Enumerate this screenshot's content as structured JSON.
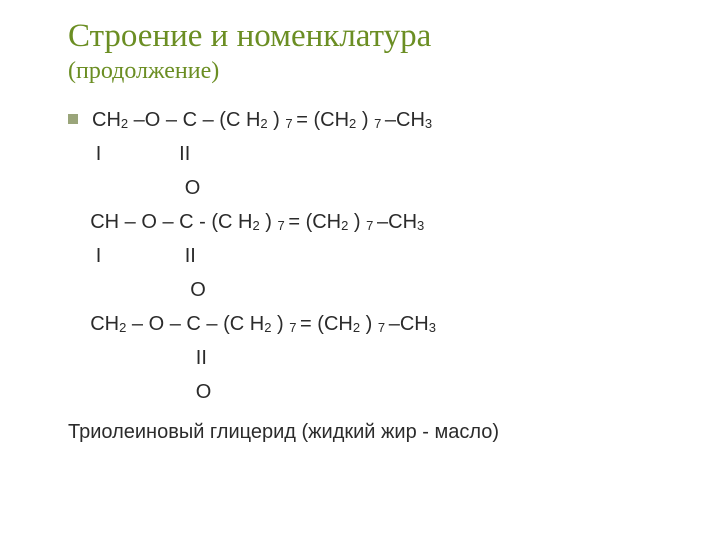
{
  "colors": {
    "title": "#6b8e23",
    "bullet": "#9aa57a",
    "body_text": "#2b2b2b",
    "background": "#ffffff"
  },
  "typography": {
    "title_family": "Times New Roman",
    "body_family": "Arial",
    "title_size_pt": 33,
    "subtitle_size_pt": 24,
    "body_size_pt": 20,
    "subscript_size_pt": 13
  },
  "title": "Строение и номенклатура",
  "subtitle": "(продолжение)",
  "block1": {
    "pre": "СН",
    "s1": "2",
    "mid1a": " –О ",
    "dash1": "–",
    "mid1b": " С – (С Н",
    "s2": "2",
    "mid2": " ) ",
    "s3": "7 ",
    "mid3": "= (СН",
    "s4": "2",
    "mid4": " ) ",
    "s5": "7 ",
    "mid5": "–СН",
    "s6": "3",
    "row2": "     I              II",
    "row3": "                     O"
  },
  "block2": {
    "pre": "    СН – О ",
    "dash1": "–",
    "mid1": " С - (С Н",
    "s1": "2",
    "mid2": " ) ",
    "s2": "7 ",
    "mid3": "= (СН",
    "s3": "2",
    "mid4": " ) ",
    "s4": "7 ",
    "mid5": "–СН",
    "s5": "3",
    "row2": "     I               II",
    "row3": "                      O"
  },
  "block3": {
    "pre": "    СН",
    "s1": "2",
    "mid1a": " ",
    "dash1": "–",
    "mid1b": " О – С – (С Н",
    "s2": "2",
    "mid2": " ) ",
    "s3": "7 ",
    "mid3": "= (СН",
    "s4": "2",
    "mid4": " ) ",
    "s5": "7 ",
    "mid5": "–СН",
    "s6": "3",
    "row2": "                       II",
    "row3": "                       O"
  },
  "caption": "Триолеиновый глицерид (жидкий жир - масло)"
}
